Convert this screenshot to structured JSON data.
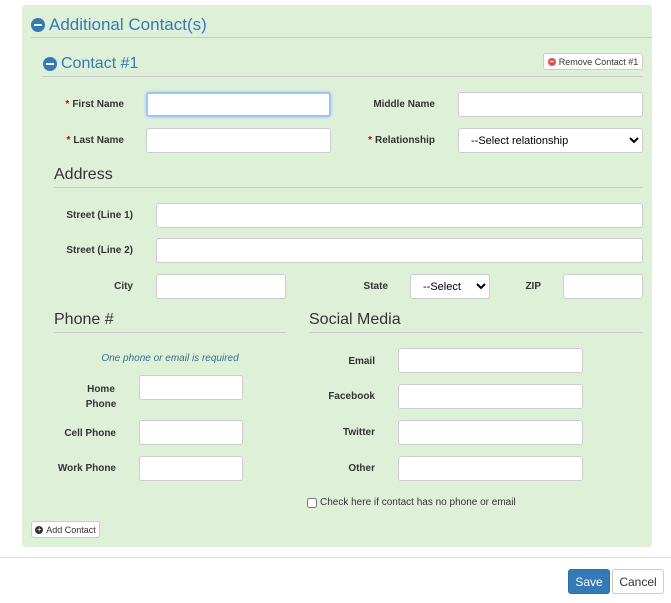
{
  "section": {
    "title": "Additional Contact(s)",
    "icon": "minus-circle-icon"
  },
  "contact": {
    "title": "Contact #1",
    "remove_label": "Remove Contact #1",
    "first_name_label": "First Name",
    "first_name": "",
    "middle_name_label": "Middle Name",
    "middle_name": "",
    "last_name_label": "Last Name",
    "last_name": "",
    "relationship_label": "Relationship",
    "relationship": "--Select relationship"
  },
  "address": {
    "heading": "Address",
    "street1_label": "Street (Line 1)",
    "street2_label": "Street (Line 2)",
    "city_label": "City",
    "state_label": "State",
    "state": "--Select",
    "zip_label": "ZIP"
  },
  "phone": {
    "heading": "Phone #",
    "note": "One phone or email is required",
    "home_label_1": "Home",
    "home_label_2": "Phone",
    "cell_label": "Cell Phone",
    "work_label": "Work Phone"
  },
  "social": {
    "heading": "Social Media",
    "email_label": "Email",
    "facebook_label": "Facebook",
    "twitter_label": "Twitter",
    "other_label": "Other",
    "no_contact_label": "Check here if contact has no phone or email"
  },
  "add_contact_label": "Add Contact",
  "footer": {
    "save": "Save",
    "cancel": "Cancel"
  },
  "colors": {
    "panel": "#dff0d8",
    "accent": "#337ab7",
    "required": "#cc0000"
  }
}
